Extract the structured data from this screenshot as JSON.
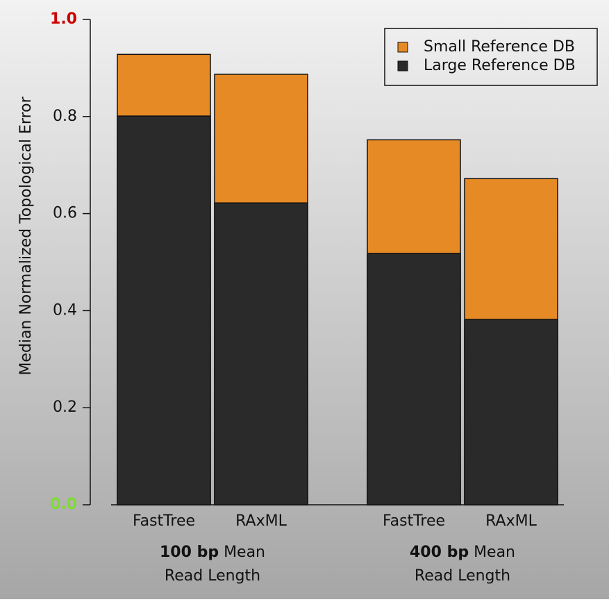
{
  "chart_data": {
    "type": "bar",
    "y_label": "Median Normalized Topological Error",
    "categories": [
      "FastTree",
      "RAxML",
      "FastTree",
      "RAxML"
    ],
    "group_labels": [
      [
        "100 bp",
        "Mean",
        "Read Length"
      ],
      [
        "400 bp",
        "Mean",
        "Read Length"
      ]
    ],
    "series": [
      {
        "name": "Small Reference DB",
        "color": "#e68a26",
        "values": [
          0.928,
          0.887,
          0.752,
          0.672
        ]
      },
      {
        "name": "Large Reference DB",
        "color": "#2a2a2a",
        "values": [
          0.801,
          0.622,
          0.518,
          0.382
        ]
      }
    ],
    "ylim": [
      0,
      1
    ],
    "yticks": [
      {
        "value": 0,
        "label": "0.0"
      },
      0.2,
      0.4,
      0.6,
      0.8,
      {
        "value": 1,
        "label": "1.0"
      }
    ],
    "ytick_label_colors": [
      "#7fdd2e",
      "#111111",
      "#111111",
      "#111111",
      "#111111",
      "#cc0000"
    ],
    "legend": "top-right"
  }
}
